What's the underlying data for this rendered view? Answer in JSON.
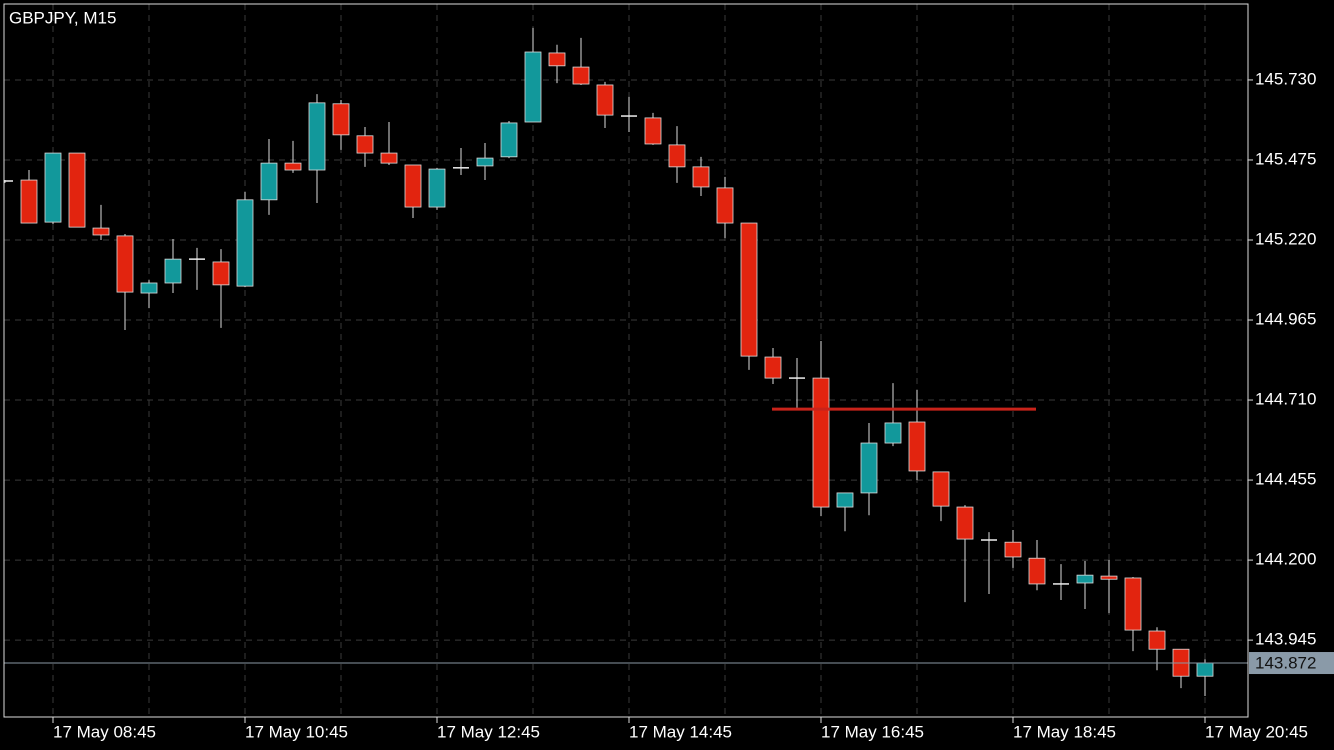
{
  "chart_data": {
    "type": "candlestick",
    "title": "GBPJPY, M15",
    "categories": [
      null,
      null,
      "17 May 08:45",
      null,
      null,
      null,
      null,
      null,
      null,
      null,
      "17 May 10:45",
      null,
      null,
      null,
      null,
      null,
      null,
      null,
      "17 May 12:45",
      null,
      null,
      null,
      null,
      null,
      null,
      null,
      "17 May 14:45",
      null,
      null,
      null,
      null,
      null,
      null,
      null,
      "17 May 16:45",
      null,
      null,
      null,
      null,
      null,
      null,
      null,
      "17 May 18:45",
      null,
      null,
      null,
      null,
      null,
      null,
      null,
      "17 May 20:45"
    ],
    "open": [
      145.408,
      145.411,
      145.277,
      145.497,
      145.258,
      145.233,
      145.051,
      145.083,
      145.159,
      145.15,
      145.073,
      145.348,
      145.465,
      145.443,
      145.654,
      145.552,
      145.497,
      145.459,
      145.325,
      145.45,
      145.456,
      145.485,
      145.596,
      145.816,
      145.771,
      145.714,
      145.615,
      145.609,
      145.523,
      145.453,
      145.386,
      145.274,
      144.847,
      144.78,
      144.78,
      144.369,
      144.414,
      144.573,
      144.64,
      144.481,
      144.369,
      144.264,
      144.257,
      144.206,
      144.124,
      144.127,
      144.149,
      144.143,
      143.974,
      143.916,
      143.83
    ],
    "high": [
      145.411,
      145.443,
      145.497,
      145.497,
      145.332,
      145.239,
      145.092,
      145.223,
      145.195,
      145.191,
      145.373,
      145.542,
      145.536,
      145.685,
      145.666,
      145.58,
      145.596,
      145.459,
      145.45,
      145.513,
      145.529,
      145.599,
      145.896,
      145.842,
      145.864,
      145.724,
      145.676,
      145.625,
      145.583,
      145.485,
      145.421,
      145.274,
      144.876,
      144.844,
      144.898,
      144.414,
      144.637,
      144.764,
      144.742,
      144.481,
      144.375,
      144.289,
      144.296,
      144.264,
      144.187,
      144.197,
      144.2,
      144.146,
      143.986,
      143.916,
      143.884
    ],
    "low": [
      145.402,
      145.274,
      145.271,
      145.261,
      145.22,
      144.933,
      145.003,
      145.051,
      145.061,
      144.94,
      145.07,
      145.3,
      145.434,
      145.338,
      145.507,
      145.453,
      145.459,
      145.29,
      145.316,
      145.427,
      145.411,
      145.481,
      145.596,
      145.72,
      145.714,
      145.577,
      145.564,
      145.523,
      145.402,
      145.36,
      145.226,
      144.806,
      144.761,
      144.685,
      144.34,
      144.292,
      144.343,
      144.563,
      144.455,
      144.324,
      144.066,
      144.092,
      144.175,
      144.104,
      144.073,
      144.044,
      144.031,
      143.91,
      143.849,
      143.792,
      143.767
    ],
    "close": [
      145.408,
      145.274,
      145.497,
      145.261,
      145.236,
      145.054,
      145.083,
      145.159,
      145.159,
      145.077,
      145.348,
      145.465,
      145.443,
      145.657,
      145.555,
      145.497,
      145.465,
      145.325,
      145.446,
      145.45,
      145.481,
      145.593,
      145.819,
      145.775,
      145.717,
      145.618,
      145.615,
      145.526,
      145.453,
      145.389,
      145.274,
      144.85,
      144.78,
      144.78,
      144.369,
      144.414,
      144.573,
      144.637,
      144.484,
      144.372,
      144.267,
      144.264,
      144.21,
      144.124,
      144.124,
      144.152,
      144.139,
      143.977,
      143.916,
      143.83,
      143.872
    ],
    "up_color": "#12989b",
    "down_color": "#e2240f",
    "ylim": [
      143.7,
      145.972
    ],
    "yticks": [
      {
        "value": 145.73,
        "label": "145.730"
      },
      145.475,
      {
        "value": 145.22,
        "label": "145.220"
      },
      144.965,
      {
        "value": 144.71,
        "label": "144.710"
      },
      144.455,
      {
        "value": 144.2,
        "label": "144.200"
      },
      143.945
    ],
    "grid": true,
    "current_price": 143.872,
    "level": {
      "value": 144.681,
      "color": "#c8231a"
    }
  }
}
